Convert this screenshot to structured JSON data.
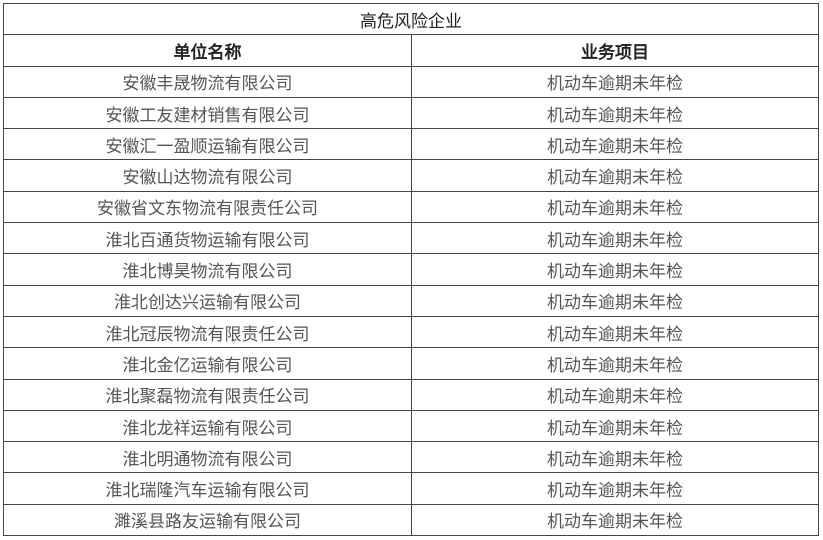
{
  "title": "高危风险企业",
  "headers": [
    "单位名称",
    "业务项目"
  ],
  "rows": [
    [
      "安徽丰晟物流有限公司",
      "机动车逾期未年检"
    ],
    [
      "安徽工友建材销售有限公司",
      "机动车逾期未年检"
    ],
    [
      "安徽汇一盈顺运输有限公司",
      "机动车逾期未年检"
    ],
    [
      "安徽山达物流有限公司",
      "机动车逾期未年检"
    ],
    [
      "安徽省文东物流有限责任公司",
      "机动车逾期未年检"
    ],
    [
      "淮北百通货物运输有限公司",
      "机动车逾期未年检"
    ],
    [
      "淮北博昊物流有限公司",
      "机动车逾期未年检"
    ],
    [
      "淮北创达兴运输有限公司",
      "机动车逾期未年检"
    ],
    [
      "淮北冠辰物流有限责任公司",
      "机动车逾期未年检"
    ],
    [
      "淮北金亿运输有限公司",
      "机动车逾期未年检"
    ],
    [
      "淮北聚磊物流有限责任公司",
      "机动车逾期未年检"
    ],
    [
      "淮北龙祥运输有限公司",
      "机动车逾期未年检"
    ],
    [
      "淮北明通物流有限公司",
      "机动车逾期未年检"
    ],
    [
      "淮北瑞隆汽车运输有限公司",
      "机动车逾期未年检"
    ],
    [
      "濉溪县路友运输有限公司",
      "机动车逾期未年检"
    ]
  ]
}
